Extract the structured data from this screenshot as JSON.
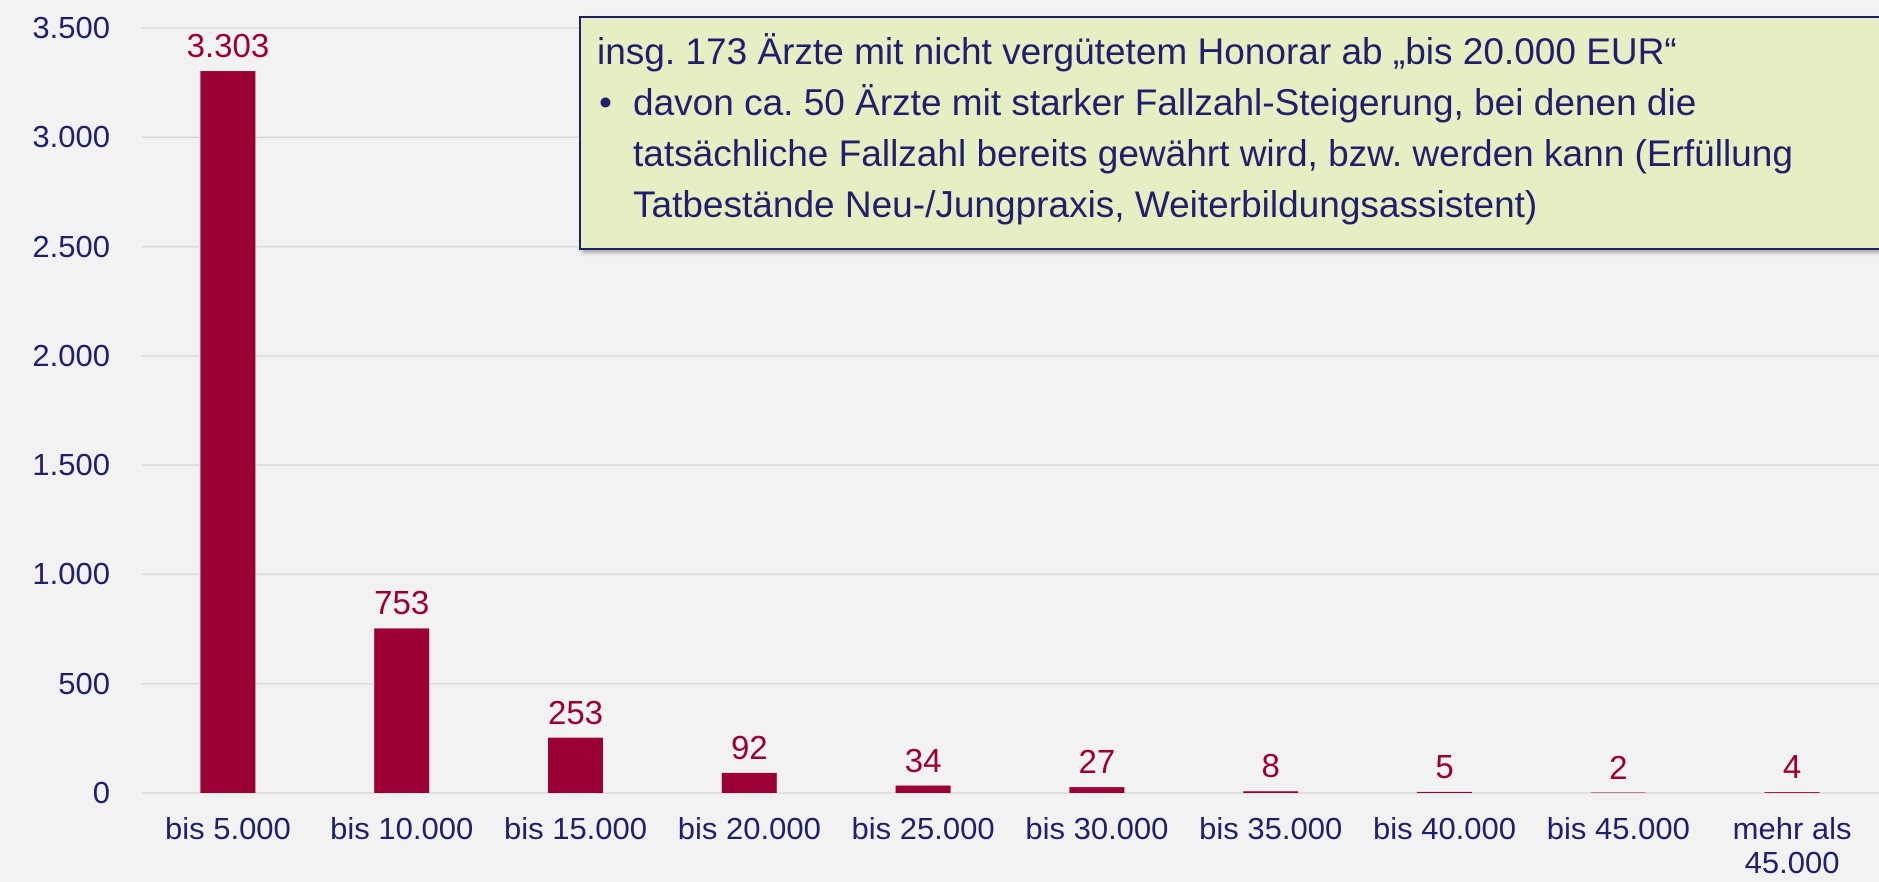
{
  "chart_data": {
    "type": "bar",
    "categories": [
      "bis 5.000",
      "bis 10.000",
      "bis 15.000",
      "bis 20.000",
      "bis 25.000",
      "bis 30.000",
      "bis 35.000",
      "bis 40.000",
      "bis 45.000",
      "mehr als 45.000"
    ],
    "values": [
      3303,
      753,
      253,
      92,
      34,
      27,
      8,
      5,
      2,
      4
    ],
    "value_labels": [
      "3.303",
      "753",
      "253",
      "92",
      "34",
      "27",
      "8",
      "5",
      "2",
      "4"
    ],
    "color": "#9b0033",
    "ylim": [
      0,
      3500
    ],
    "yticks": [
      0,
      500,
      {
        "value": 1000,
        "label": "1.000"
      },
      {
        "value": 1500,
        "label": "1.500"
      },
      {
        "value": 2000,
        "label": "2.000"
      },
      {
        "value": 2500,
        "label": "2.500"
      },
      {
        "value": 3000,
        "label": "3.000"
      },
      {
        "value": 3500,
        "label": "3.500"
      }
    ],
    "grid": true,
    "annotation": {
      "title": "insg. 173 Ärzte mit nicht vergütetem Honorar ab „bis 20.000 EUR“",
      "bullets": [
        "davon ca. 50 Ärzte mit starker Fallzahl-Steigerung, bei denen die tatsächliche Fallzahl bereits gewährt wird, bzw. werden kann (Erfüllung Tatbestände Neu-/Jungpraxis, Weiterbildungsassistent)"
      ]
    }
  }
}
